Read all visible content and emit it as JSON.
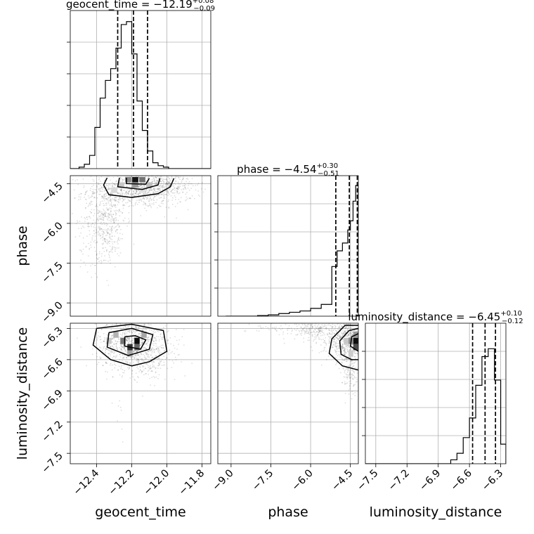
{
  "chart_data": {
    "type": "corner",
    "parameters": [
      {
        "name": "geocent_time",
        "label": "geocent_time",
        "title": "geocent_time = −12.19",
        "title_sup": "+0.08",
        "title_sub": "−0.09",
        "range": [
          -12.55,
          -11.75
        ],
        "ticks": [
          -12.4,
          -12.2,
          -12.0,
          -11.8
        ],
        "tick_labels": [
          "−12.4",
          "−12.2",
          "−12.0",
          "−11.8"
        ],
        "quantiles": [
          -12.28,
          -12.19,
          -12.11
        ],
        "hist_bins": [
          -12.56,
          -12.53,
          -12.5,
          -12.47,
          -12.44,
          -12.41,
          -12.38,
          -12.35,
          -12.32,
          -12.29,
          -12.26,
          -12.23,
          -12.2,
          -12.17,
          -12.14,
          -12.11,
          -12.08,
          -12.05,
          -12.02,
          -11.99,
          -11.96,
          -11.93,
          -11.9,
          -11.87,
          -11.84,
          -11.81,
          -11.78,
          -11.75
        ],
        "hist_counts": [
          0,
          0,
          0.01,
          0.03,
          0.09,
          0.28,
          0.48,
          0.6,
          0.68,
          0.82,
          0.98,
          1.0,
          0.78,
          0.46,
          0.26,
          0.12,
          0.04,
          0.02,
          0.01,
          0,
          0,
          0,
          0,
          0,
          0,
          0,
          0
        ]
      },
      {
        "name": "phase",
        "label": "phase",
        "title": "phase = −4.54",
        "title_sup": "+0.30",
        "title_sub": "−0.51",
        "range": [
          -9.5,
          -4.2
        ],
        "ticks": [
          -9.0,
          -7.5,
          -6.0,
          -4.5
        ],
        "tick_labels": [
          "−9.0",
          "−7.5",
          "−6.0",
          "−4.5"
        ],
        "quantiles": [
          -5.05,
          -4.54,
          -4.24
        ],
        "hist_bins": [
          -9.2,
          -8.0,
          -7.6,
          -7.2,
          -6.8,
          -6.4,
          -6.0,
          -5.6,
          -5.2,
          -5.0,
          -4.8,
          -4.6,
          -4.5,
          -4.4,
          -4.3,
          -4.2
        ],
        "hist_counts": [
          0,
          0.005,
          0.01,
          0.02,
          0.03,
          0.04,
          0.06,
          0.09,
          0.38,
          0.5,
          0.56,
          0.66,
          0.73,
          0.88,
          1.0
        ]
      },
      {
        "name": "luminosity_distance",
        "label": "luminosity_distance",
        "title": "luminosity_distance = −6.45",
        "title_sup": "+0.10",
        "title_sub": "−0.12",
        "range": [
          -7.6,
          -6.25
        ],
        "ticks": [
          -7.5,
          -7.2,
          -6.9,
          -6.6,
          -6.3
        ],
        "tick_labels": [
          "−7.5",
          "−7.2",
          "−6.9",
          "−6.6",
          "−6.3"
        ],
        "quantiles": [
          -6.57,
          -6.45,
          -6.35
        ],
        "hist_bins": [
          -7.6,
          -6.78,
          -6.72,
          -6.66,
          -6.6,
          -6.54,
          -6.48,
          -6.42,
          -6.36,
          -6.3,
          -6.25
        ],
        "hist_counts": [
          0,
          0.03,
          0.08,
          0.2,
          0.35,
          0.6,
          0.82,
          0.88,
          0.64,
          0.15
        ]
      }
    ],
    "pairs": [
      {
        "x": "geocent_time",
        "y": "phase",
        "peak": [
          -12.18,
          -4.35
        ],
        "density_cells": [
          {
            "x": -12.18,
            "y": -4.35,
            "w": 0.035,
            "h": 0.2,
            "level": 0.92
          },
          {
            "x": -12.22,
            "y": -4.35,
            "w": 0.035,
            "h": 0.2,
            "level": 0.45
          },
          {
            "x": -12.14,
            "y": -4.35,
            "w": 0.035,
            "h": 0.2,
            "level": 0.55
          },
          {
            "x": -12.18,
            "y": -4.55,
            "w": 0.035,
            "h": 0.2,
            "level": 0.4
          },
          {
            "x": -12.26,
            "y": -4.55,
            "w": 0.035,
            "h": 0.2,
            "level": 0.22
          },
          {
            "x": -12.1,
            "y": -4.55,
            "w": 0.035,
            "h": 0.2,
            "level": 0.25
          },
          {
            "x": -12.3,
            "y": -4.75,
            "w": 0.035,
            "h": 0.2,
            "level": 0.15
          },
          {
            "x": -12.14,
            "y": -4.75,
            "w": 0.035,
            "h": 0.2,
            "level": 0.12
          }
        ],
        "contours": [
          [
            [
              -12.34,
              -4.28
            ],
            [
              -12.36,
              -4.55
            ],
            [
              -12.33,
              -4.92
            ],
            [
              -12.2,
              -5.02
            ],
            [
              -12.05,
              -4.88
            ],
            [
              -11.98,
              -4.62
            ],
            [
              -11.96,
              -4.3
            ]
          ],
          [
            [
              -12.27,
              -4.28
            ],
            [
              -12.28,
              -4.62
            ],
            [
              -12.14,
              -4.72
            ],
            [
              -12.05,
              -4.55
            ],
            [
              -12.04,
              -4.3
            ]
          ],
          [
            [
              -12.23,
              -4.28
            ],
            [
              -12.23,
              -4.5
            ],
            [
              -12.12,
              -4.52
            ],
            [
              -12.1,
              -4.3
            ]
          ]
        ],
        "scatter_blobs": [
          {
            "cx": -12.15,
            "cy": -4.75,
            "sx": 0.15,
            "sy": 0.35,
            "n": 800
          },
          {
            "cx": -12.35,
            "cy": -5.8,
            "sx": 0.06,
            "sy": 0.7,
            "n": 420
          },
          {
            "cx": -12.38,
            "cy": -7.0,
            "sx": 0.06,
            "sy": 0.5,
            "n": 80
          },
          {
            "cx": -12.05,
            "cy": -4.55,
            "sx": 0.1,
            "sy": 0.18,
            "n": 220
          }
        ]
      },
      {
        "x": "geocent_time",
        "y": "luminosity_distance",
        "peak": [
          -12.19,
          -6.42
        ],
        "density_cells": [
          {
            "x": -12.17,
            "y": -6.42,
            "w": 0.03,
            "h": 0.06,
            "level": 0.95
          },
          {
            "x": -12.21,
            "y": -6.48,
            "w": 0.03,
            "h": 0.06,
            "level": 0.8
          },
          {
            "x": -12.25,
            "y": -6.42,
            "w": 0.03,
            "h": 0.06,
            "level": 0.55
          },
          {
            "x": -12.17,
            "y": -6.48,
            "w": 0.03,
            "h": 0.06,
            "level": 0.6
          },
          {
            "x": -12.29,
            "y": -6.36,
            "w": 0.03,
            "h": 0.06,
            "level": 0.3
          },
          {
            "x": -12.13,
            "y": -6.36,
            "w": 0.03,
            "h": 0.06,
            "level": 0.35
          },
          {
            "x": -12.21,
            "y": -6.54,
            "w": 0.03,
            "h": 0.06,
            "level": 0.35
          },
          {
            "x": -12.33,
            "y": -6.42,
            "w": 0.03,
            "h": 0.06,
            "level": 0.2
          }
        ],
        "contours": [
          [
            [
              -12.4,
              -6.3
            ],
            [
              -12.42,
              -6.46
            ],
            [
              -12.32,
              -6.6
            ],
            [
              -12.2,
              -6.66
            ],
            [
              -12.1,
              -6.62
            ],
            [
              -12.0,
              -6.52
            ],
            [
              -12.02,
              -6.32
            ],
            [
              -12.2,
              -6.26
            ],
            [
              -12.4,
              -6.3
            ]
          ],
          [
            [
              -12.33,
              -6.34
            ],
            [
              -12.34,
              -6.48
            ],
            [
              -12.22,
              -6.56
            ],
            [
              -12.1,
              -6.5
            ],
            [
              -12.08,
              -6.36
            ],
            [
              -12.2,
              -6.3
            ],
            [
              -12.33,
              -6.34
            ]
          ],
          [
            [
              -12.24,
              -6.38
            ],
            [
              -12.24,
              -6.47
            ],
            [
              -12.15,
              -6.5
            ],
            [
              -12.12,
              -6.41
            ],
            [
              -12.18,
              -6.37
            ],
            [
              -12.24,
              -6.38
            ]
          ]
        ],
        "scatter_blobs": [
          {
            "cx": -12.19,
            "cy": -6.45,
            "sx": 0.1,
            "sy": 0.12,
            "n": 900
          },
          {
            "cx": -12.1,
            "cy": -6.65,
            "sx": 0.08,
            "sy": 0.08,
            "n": 120
          },
          {
            "cx": -12.25,
            "cy": -7.1,
            "sx": 0.05,
            "sy": 0.2,
            "n": 10
          }
        ]
      },
      {
        "x": "phase",
        "y": "luminosity_distance",
        "peak": [
          -4.32,
          -6.42
        ],
        "density_cells": [
          {
            "x": -4.3,
            "y": -6.42,
            "w": 0.18,
            "h": 0.06,
            "level": 0.95
          },
          {
            "x": -4.3,
            "y": -6.48,
            "w": 0.18,
            "h": 0.06,
            "level": 0.7
          },
          {
            "x": -4.48,
            "y": -6.42,
            "w": 0.18,
            "h": 0.06,
            "level": 0.45
          },
          {
            "x": -4.3,
            "y": -6.36,
            "w": 0.18,
            "h": 0.06,
            "level": 0.4
          },
          {
            "x": -4.66,
            "y": -6.42,
            "w": 0.18,
            "h": 0.06,
            "level": 0.22
          },
          {
            "x": -4.48,
            "y": -6.54,
            "w": 0.18,
            "h": 0.06,
            "level": 0.2
          }
        ],
        "contours": [
          [
            [
              -4.2,
              -6.27
            ],
            [
              -4.7,
              -6.27
            ],
            [
              -5.2,
              -6.4
            ],
            [
              -5.3,
              -6.54
            ],
            [
              -4.8,
              -6.66
            ],
            [
              -4.2,
              -6.7
            ]
          ],
          [
            [
              -4.2,
              -6.3
            ],
            [
              -4.55,
              -6.32
            ],
            [
              -4.9,
              -6.42
            ],
            [
              -4.85,
              -6.55
            ],
            [
              -4.45,
              -6.6
            ],
            [
              -4.2,
              -6.6
            ]
          ],
          [
            [
              -4.2,
              -6.35
            ],
            [
              -4.45,
              -6.38
            ],
            [
              -4.5,
              -6.47
            ],
            [
              -4.2,
              -6.52
            ]
          ]
        ],
        "scatter_blobs": [
          {
            "cx": -4.6,
            "cy": -6.42,
            "sx": 0.4,
            "sy": 0.1,
            "n": 700
          },
          {
            "cx": -5.8,
            "cy": -6.32,
            "sx": 0.5,
            "sy": 0.05,
            "n": 220
          },
          {
            "cx": -7.2,
            "cy": -6.3,
            "sx": 0.6,
            "sy": 0.03,
            "n": 40
          },
          {
            "cx": -4.5,
            "cy": -6.75,
            "sx": 0.15,
            "sy": 0.1,
            "n": 110
          }
        ]
      }
    ]
  }
}
